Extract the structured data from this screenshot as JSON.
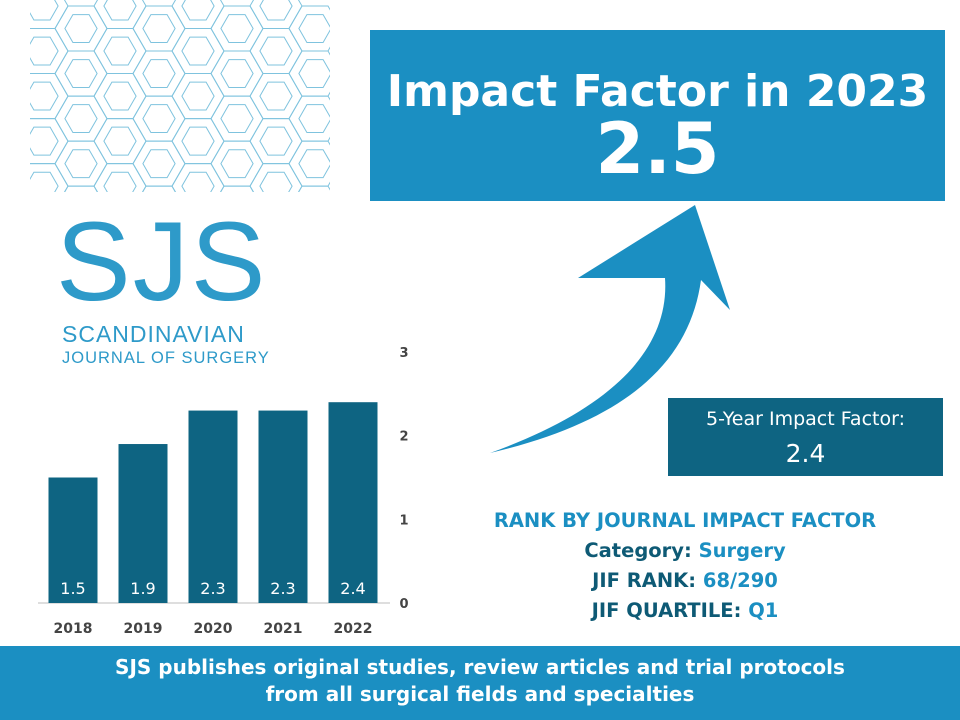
{
  "header": {
    "impact_title": "Impact Factor in 2023",
    "impact_value": "2.5"
  },
  "logo": {
    "acronym": "SJS",
    "line1": "SCANDINAVIAN",
    "line2": "JOURNAL OF SURGERY"
  },
  "five_year": {
    "label": "5-Year Impact Factor:",
    "value": "2.4"
  },
  "rank": {
    "title": "RANK BY JOURNAL IMPACT FACTOR",
    "category_key": "Category:",
    "category_val": "Surgery",
    "jif_rank_key": "JIF RANK:",
    "jif_rank_val": "68/290",
    "quartile_key": "JIF QUARTILE:",
    "quartile_val": "Q1"
  },
  "footer": {
    "line1": "SJS publishes original studies, review articles and trial protocols",
    "line2": "from all surgical fields and specialties"
  },
  "colors": {
    "brand_light": "#1b8fc2",
    "brand_dark": "#0e6482",
    "logo": "#2e9ac9"
  },
  "chart_data": {
    "type": "bar",
    "categories": [
      "2018",
      "2019",
      "2020",
      "2021",
      "2022"
    ],
    "values": [
      1.5,
      1.9,
      2.3,
      2.3,
      2.4
    ],
    "data_labels": [
      "1.5",
      "1.9",
      "2.3",
      "2.3",
      "2.4"
    ],
    "yticks": [
      "0",
      "1",
      "2",
      "3"
    ],
    "ylim": [
      0,
      3
    ],
    "grid": false,
    "bar_color": "#0e6482"
  }
}
